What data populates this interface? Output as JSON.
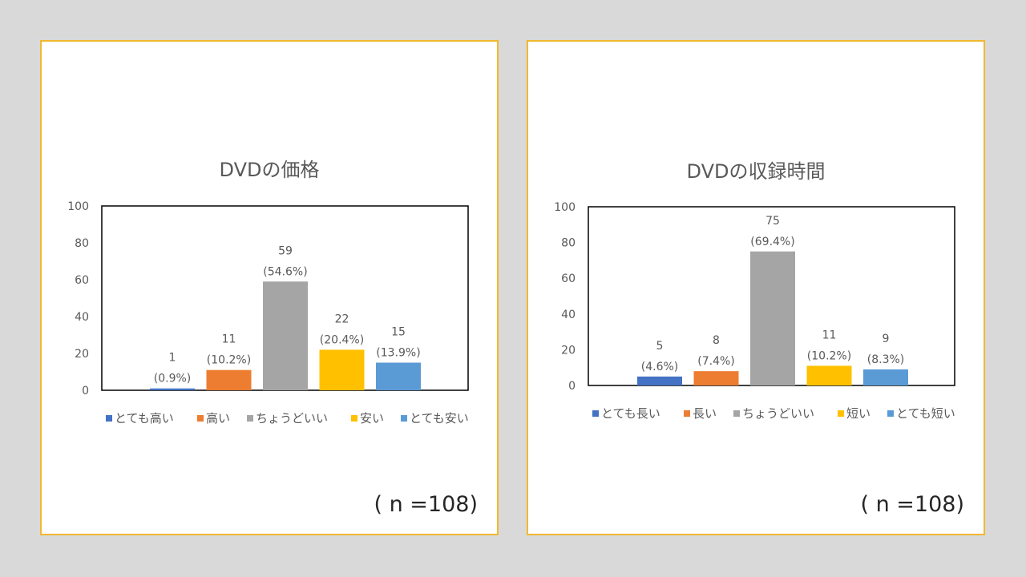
{
  "chart_data": [
    {
      "type": "bar",
      "title": "DVDの価格",
      "categories": [
        "とても高い",
        "高い",
        "ちょうどいい",
        "安い",
        "とても安い"
      ],
      "values": [
        1,
        11,
        59,
        22,
        15
      ],
      "percent_labels": [
        "(0.9%)",
        "(10.2%)",
        "(54.6%)",
        "(20.4%)",
        "(13.9%)"
      ],
      "colors": [
        "#4472c4",
        "#ed7d31",
        "#a5a5a5",
        "#ffc000",
        "#5b9bd5"
      ],
      "ylim": [
        0,
        100
      ],
      "yticks": [
        0,
        20,
        40,
        60,
        80,
        100
      ],
      "grid": false,
      "legend": "bottom",
      "xlabel": "",
      "ylabel": "",
      "note": "( n =108)"
    },
    {
      "type": "bar",
      "title": "DVDの収録時間",
      "categories": [
        "とても長い",
        "長い",
        "ちょうどいい",
        "短い",
        "とても短い"
      ],
      "values": [
        5,
        8,
        75,
        11,
        9
      ],
      "percent_labels": [
        "(4.6%)",
        "(7.4%)",
        "(69.4%)",
        "(10.2%)",
        "(8.3%)"
      ],
      "colors": [
        "#4472c4",
        "#ed7d31",
        "#a5a5a5",
        "#ffc000",
        "#5b9bd5"
      ],
      "ylim": [
        0,
        100
      ],
      "yticks": [
        0,
        20,
        40,
        60,
        80,
        100
      ],
      "grid": false,
      "legend": "bottom",
      "xlabel": "",
      "ylabel": "",
      "note": "( n =108)"
    }
  ]
}
